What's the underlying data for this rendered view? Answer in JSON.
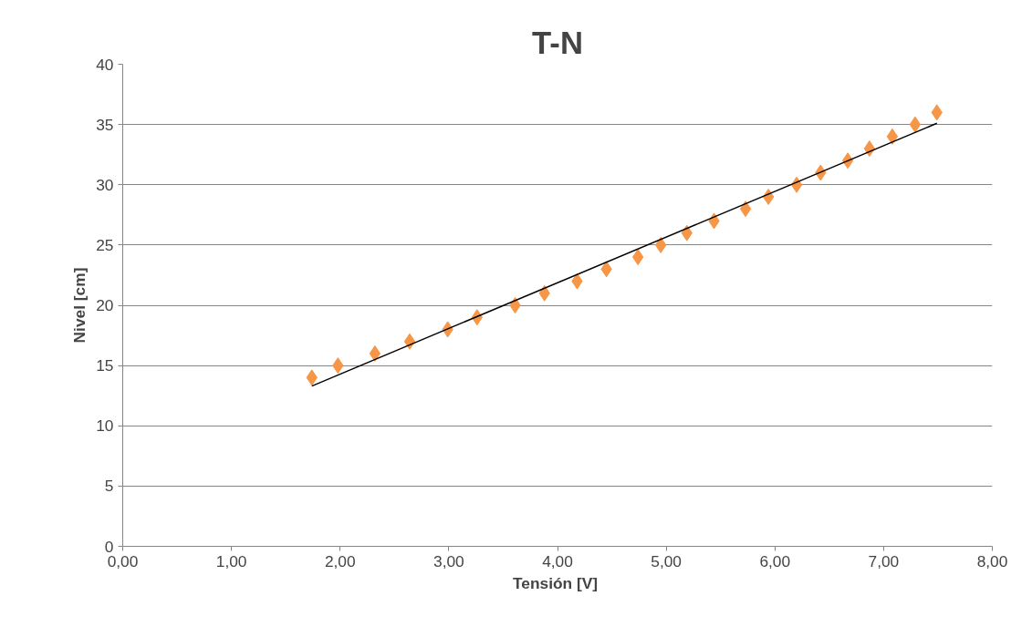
{
  "chart_data": {
    "type": "scatter",
    "title": "T-N",
    "xlabel": "Tensión  [V]",
    "ylabel": "Nivel [cm]",
    "xlim": [
      0,
      8
    ],
    "ylim": [
      0,
      40
    ],
    "xticks": [
      {
        "value": 0,
        "label": "0,00"
      },
      {
        "value": 1,
        "label": "1,00"
      },
      {
        "value": 2,
        "label": "2,00"
      },
      {
        "value": 3,
        "label": "3,00"
      },
      {
        "value": 4,
        "label": "4,00"
      },
      {
        "value": 5,
        "label": "5,00"
      },
      {
        "value": 6,
        "label": "6,00"
      },
      {
        "value": 7,
        "label": "7,00"
      },
      {
        "value": 8,
        "label": "8,00"
      }
    ],
    "yticks": [
      0,
      5,
      10,
      15,
      20,
      25,
      30,
      35,
      40
    ],
    "grid": "y",
    "series": [
      {
        "marker": "diamond",
        "color": "#f79646",
        "x": [
          1.74,
          1.98,
          2.32,
          2.64,
          2.99,
          3.26,
          3.61,
          3.88,
          4.18,
          4.45,
          4.74,
          4.95,
          5.19,
          5.44,
          5.73,
          5.94,
          6.2,
          6.42,
          6.67,
          6.87,
          7.08,
          7.29,
          7.49
        ],
        "values": [
          14,
          15,
          16,
          17,
          18,
          19,
          20,
          21,
          22,
          23,
          24,
          25,
          26,
          27,
          28,
          29,
          30,
          31,
          32,
          33,
          34,
          35,
          36
        ]
      },
      {
        "type": "line",
        "color": "#000000",
        "x": [
          1.74,
          7.49
        ],
        "values": [
          13.3,
          35.1
        ]
      }
    ]
  }
}
